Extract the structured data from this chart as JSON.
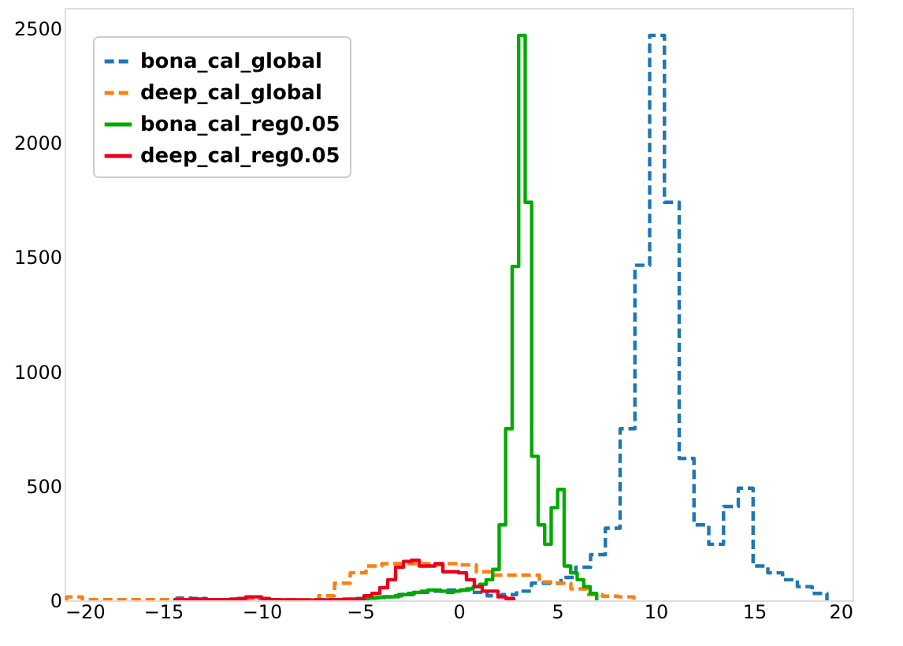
{
  "chart_data": {
    "type": "step",
    "xlim": [
      -20,
      20
    ],
    "ylim": [
      0,
      2590
    ],
    "xticks": [
      {
        "value": -20,
        "label": "−20"
      },
      {
        "value": -15,
        "label": "−15"
      },
      {
        "value": -10,
        "label": "−10"
      },
      {
        "value": -5,
        "label": "−5"
      },
      0,
      5,
      10,
      15,
      20
    ],
    "yticks": [
      0,
      500,
      1000,
      1500,
      2000,
      2500
    ],
    "grid": false,
    "legend": "top left",
    "series": [
      {
        "name": "bona_cal_global",
        "color": "#1f77b4",
        "line_style": "dashed",
        "x": [
          -14.3,
          -13.55,
          -12.8,
          -12.05,
          -11.3,
          -10.55,
          -9.8,
          -9.05,
          -8.3,
          -7.55,
          -6.8,
          -6.05,
          -5.3,
          -4.55,
          -3.8,
          -3.05,
          -2.3,
          -1.55,
          -0.8,
          -0.05,
          0.7,
          1.45,
          2.2,
          2.95,
          3.7,
          4.45,
          5.2,
          5.95,
          6.7,
          7.45,
          8.2,
          8.95,
          9.7,
          10.45,
          11.2,
          11.95,
          12.7,
          13.45,
          14.2,
          14.95,
          15.7,
          16.45,
          17.2,
          17.95,
          18.7
        ],
        "values": [
          10,
          8,
          3,
          2,
          2,
          2,
          2,
          2,
          2,
          3,
          3,
          5,
          8,
          10,
          15,
          25,
          35,
          40,
          45,
          45,
          35,
          20,
          25,
          40,
          75,
          75,
          100,
          145,
          200,
          315,
          750,
          1465,
          2470,
          1740,
          620,
          330,
          245,
          410,
          490,
          150,
          120,
          90,
          60,
          30,
          0
        ]
      },
      {
        "name": "deep_cal_global",
        "color": "#ff7f0e",
        "line_style": "dashed",
        "x": [
          -19.9,
          -19.1,
          -18.3,
          -17.5,
          -16.7,
          -15.9,
          -15.1,
          -14.3,
          -13.5,
          -12.7,
          -11.9,
          -11.1,
          -10.3,
          -9.5,
          -8.7,
          -7.9,
          -7.1,
          -6.3,
          -5.5,
          -4.7,
          -3.9,
          -3.1,
          -2.3,
          -1.5,
          -0.7,
          0.1,
          0.9,
          1.7,
          2.5,
          3.3,
          4.1,
          4.9,
          5.7,
          6.5,
          7.3,
          8.1,
          8.9
        ],
        "values": [
          15,
          3,
          3,
          3,
          3,
          3,
          3,
          3,
          3,
          3,
          3,
          3,
          3,
          3,
          3,
          3,
          20,
          75,
          120,
          150,
          160,
          160,
          160,
          155,
          160,
          155,
          125,
          110,
          110,
          110,
          80,
          75,
          50,
          25,
          18,
          15,
          0
        ]
      },
      {
        "name": "bona_cal_reg0.05",
        "color": "#00aa00",
        "line_style": "solid",
        "x": [
          -6.19,
          -5.86,
          -5.53,
          -5.2,
          -4.87,
          -4.54,
          -4.21,
          -3.88,
          -3.55,
          -3.22,
          -2.89,
          -2.56,
          -2.23,
          -1.9,
          -1.57,
          -1.24,
          -0.91,
          -0.58,
          -0.25,
          0.08,
          0.41,
          0.74,
          1.07,
          1.4,
          1.73,
          2.06,
          2.39,
          2.72,
          3.05,
          3.38,
          3.71,
          4.04,
          4.37,
          4.7,
          5.03,
          5.36,
          5.69,
          6.02,
          6.35,
          6.68,
          7.01
        ],
        "values": [
          3,
          3,
          5,
          5,
          8,
          10,
          12,
          15,
          15,
          20,
          25,
          30,
          35,
          40,
          45,
          45,
          40,
          35,
          40,
          45,
          50,
          60,
          70,
          90,
          135,
          330,
          750,
          1460,
          2470,
          1740,
          630,
          330,
          245,
          405,
          485,
          150,
          120,
          90,
          60,
          30,
          0
        ]
      },
      {
        "name": "deep_cal_reg0.05",
        "color": "#e8001c",
        "line_style": "solid",
        "x": [
          -14.4,
          -14.0,
          -13.6,
          -13.2,
          -12.8,
          -12.4,
          -12.0,
          -11.6,
          -11.2,
          -10.8,
          -10.4,
          -10.0,
          -9.6,
          -9.2,
          -8.8,
          -8.4,
          -8.0,
          -7.6,
          -7.2,
          -6.8,
          -6.4,
          -6.0,
          -5.6,
          -5.2,
          -4.8,
          -4.4,
          -4.0,
          -3.6,
          -3.2,
          -2.8,
          -2.4,
          -2.0,
          -1.6,
          -1.2,
          -0.8,
          -0.4,
          0,
          0.4,
          0.8,
          1.2,
          1.6,
          2.0,
          2.4,
          2.8
        ],
        "values": [
          3,
          3,
          5,
          5,
          3,
          3,
          3,
          5,
          8,
          15,
          15,
          8,
          3,
          2,
          2,
          2,
          1,
          1,
          2,
          2,
          2,
          3,
          3,
          5,
          20,
          30,
          55,
          90,
          145,
          170,
          175,
          150,
          150,
          160,
          125,
          125,
          120,
          90,
          60,
          40,
          40,
          15,
          8,
          0
        ]
      }
    ]
  }
}
